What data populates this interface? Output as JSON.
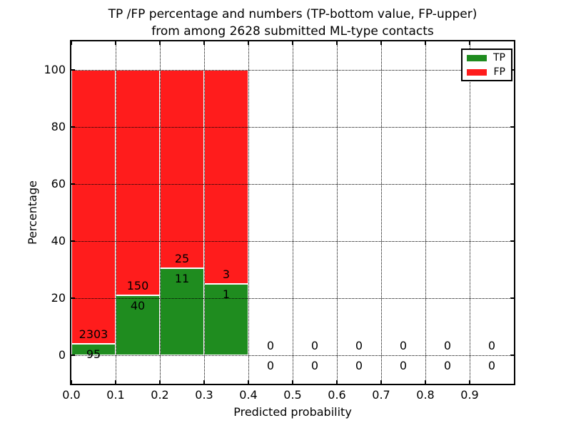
{
  "chart_data": {
    "type": "bar",
    "stacked": true,
    "title_line1": "TP /FP percentage and numbers (TP-bottom value, FP-upper)",
    "title_line2": "from among 2628 submitted ML-type contacts",
    "xlabel": "Predicted probability",
    "ylabel": "Percentage",
    "xlim": [
      0.0,
      1.0
    ],
    "ylim": [
      -10,
      110
    ],
    "xticks": [
      "0.0",
      "0.1",
      "0.2",
      "0.3",
      "0.4",
      "0.5",
      "0.6",
      "0.7",
      "0.8",
      "0.9"
    ],
    "yticks": [
      0,
      20,
      40,
      60,
      80,
      100
    ],
    "grid": "dotted black, on top of bars",
    "legend": {
      "position": "upper right",
      "entries": [
        {
          "label": "TP",
          "color": "#1f8c1f"
        },
        {
          "label": "FP",
          "color": "#ff1c1c"
        }
      ]
    },
    "series": [
      {
        "name": "TP",
        "values": [
          3.96,
          21.05,
          30.56,
          25.0,
          0,
          0,
          0,
          0,
          0,
          0
        ]
      },
      {
        "name": "FP",
        "values": [
          96.04,
          78.95,
          69.44,
          75.0,
          0,
          0,
          0,
          0,
          0,
          0
        ]
      }
    ],
    "bins": [
      {
        "x0": 0.0,
        "x1": 0.1,
        "tp_count": 95,
        "fp_count": 2303,
        "tp_pct": 3.96,
        "fp_pct": 96.04
      },
      {
        "x0": 0.1,
        "x1": 0.2,
        "tp_count": 40,
        "fp_count": 150,
        "tp_pct": 21.05,
        "fp_pct": 78.95
      },
      {
        "x0": 0.2,
        "x1": 0.3,
        "tp_count": 11,
        "fp_count": 25,
        "tp_pct": 30.56,
        "fp_pct": 69.44
      },
      {
        "x0": 0.3,
        "x1": 0.4,
        "tp_count": 1,
        "fp_count": 3,
        "tp_pct": 25.0,
        "fp_pct": 75.0
      },
      {
        "x0": 0.4,
        "x1": 0.5,
        "tp_count": 0,
        "fp_count": 0,
        "tp_pct": 0,
        "fp_pct": 0
      },
      {
        "x0": 0.5,
        "x1": 0.6,
        "tp_count": 0,
        "fp_count": 0,
        "tp_pct": 0,
        "fp_pct": 0
      },
      {
        "x0": 0.6,
        "x1": 0.7,
        "tp_count": 0,
        "fp_count": 0,
        "tp_pct": 0,
        "fp_pct": 0
      },
      {
        "x0": 0.7,
        "x1": 0.8,
        "tp_count": 0,
        "fp_count": 0,
        "tp_pct": 0,
        "fp_pct": 0
      },
      {
        "x0": 0.8,
        "x1": 0.9,
        "tp_count": 0,
        "fp_count": 0,
        "tp_pct": 0,
        "fp_pct": 0
      },
      {
        "x0": 0.9,
        "x1": 1.0,
        "tp_count": 0,
        "fp_count": 0,
        "tp_pct": 0,
        "fp_pct": 0
      }
    ]
  },
  "colors": {
    "tp": "#1f8c1f",
    "fp": "#ff1c1c",
    "axis": "#000000",
    "grid": "#000000",
    "background": "#ffffff"
  }
}
